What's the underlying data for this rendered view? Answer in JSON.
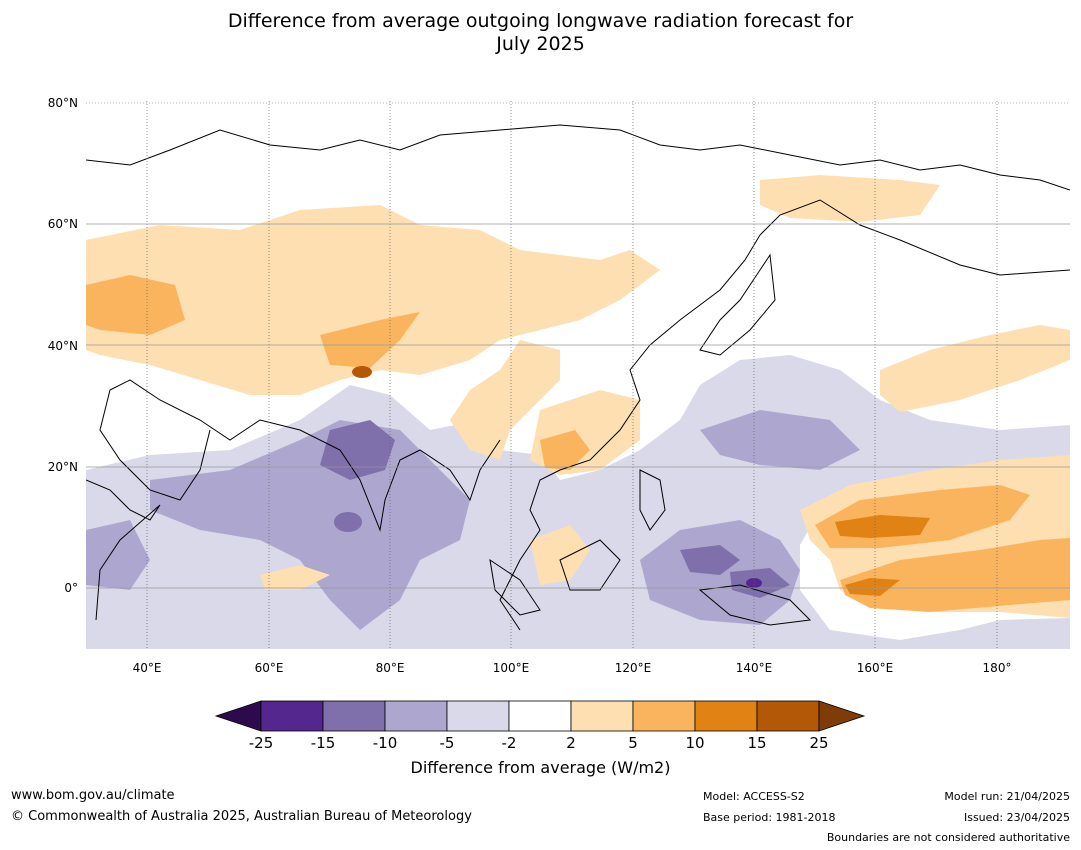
{
  "title_line1": "Difference from average outgoing longwave radiation forecast for",
  "title_line2": "July 2025",
  "map": {
    "lat_labels": [
      "80°N",
      "60°N",
      "40°N",
      "20°N",
      "0°"
    ],
    "lon_labels": [
      "40°E",
      "60°E",
      "80°E",
      "100°E",
      "120°E",
      "140°E",
      "160°E",
      "180°"
    ]
  },
  "colorbar": {
    "label": "Difference from average (W/m2)",
    "ticks": [
      "-25",
      "-15",
      "-10",
      "-5",
      "-2",
      "2",
      "5",
      "10",
      "15",
      "25"
    ],
    "colors": {
      "below_min": "#2d0a4e",
      "lt_-15": "#54278f",
      "-15_-10": "#7f6fab",
      "-10_-5": "#ada7cf",
      "-5_-2": "#d9d9ea",
      "-2_2": "#ffffff",
      "2_5": "#fddfb2",
      "5_10": "#fbb45e",
      "10_15": "#e08214",
      "15_25": "#b35806",
      "above_max": "#7f3b08"
    }
  },
  "footer": {
    "url": "www.bom.gov.au/climate",
    "copyright": "© Commonwealth of Australia 2025, Australian Bureau of Meteorology",
    "model": "Model: ACCESS-S2",
    "base_period": "Base period: 1981-2018",
    "model_run": "Model run: 21/04/2025",
    "issued": "Issued: 23/04/2025",
    "disclaimer": "Boundaries are not considered authoritative"
  }
}
